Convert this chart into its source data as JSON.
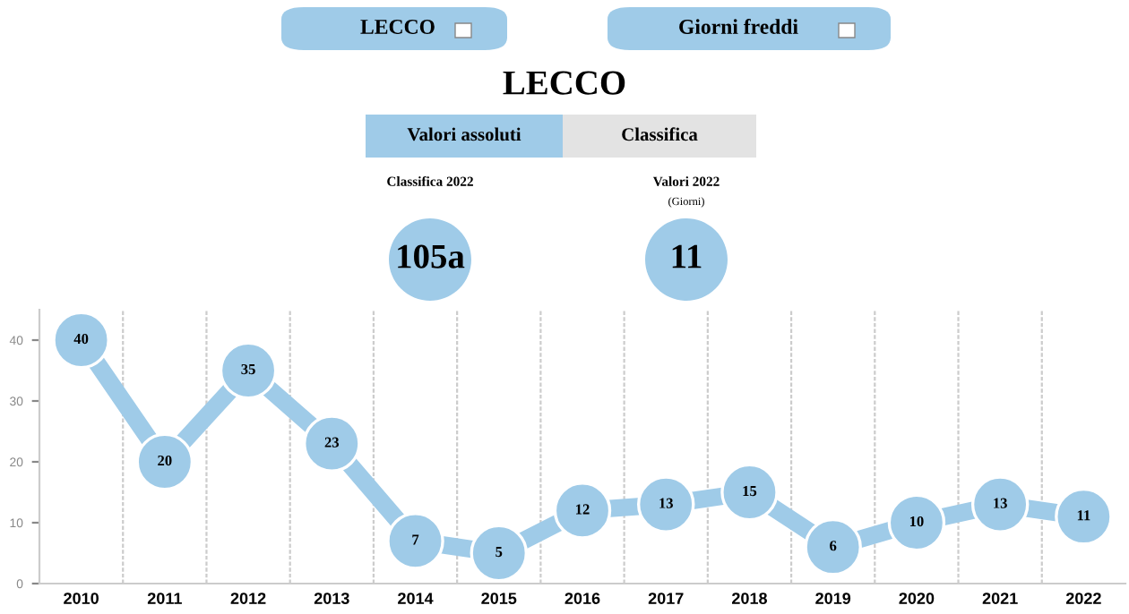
{
  "chart_data": {
    "type": "line",
    "title": "LECCO",
    "annotations": [
      "LECCO",
      "Giorni freddi",
      "Valori assoluti",
      "Classifica",
      "Classifica 2022",
      "105a",
      "Valori 2022",
      "(Giorni)",
      "11"
    ],
    "categories": [
      "2010",
      "2011",
      "2012",
      "2013",
      "2014",
      "2015",
      "2016",
      "2017",
      "2018",
      "2019",
      "2020",
      "2021",
      "2022"
    ],
    "series": [
      {
        "color": "#9fcbe8",
        "values": [
          40,
          20,
          35,
          23,
          7,
          5,
          12,
          13,
          15,
          6,
          10,
          13,
          11
        ]
      }
    ],
    "ylim": [
      0,
      45
    ],
    "yticks": [
      0,
      10,
      20,
      30,
      40
    ],
    "grid": "x",
    "marker": "circle",
    "line_style": "solid",
    "data_labels": true,
    "legend": false
  }
}
